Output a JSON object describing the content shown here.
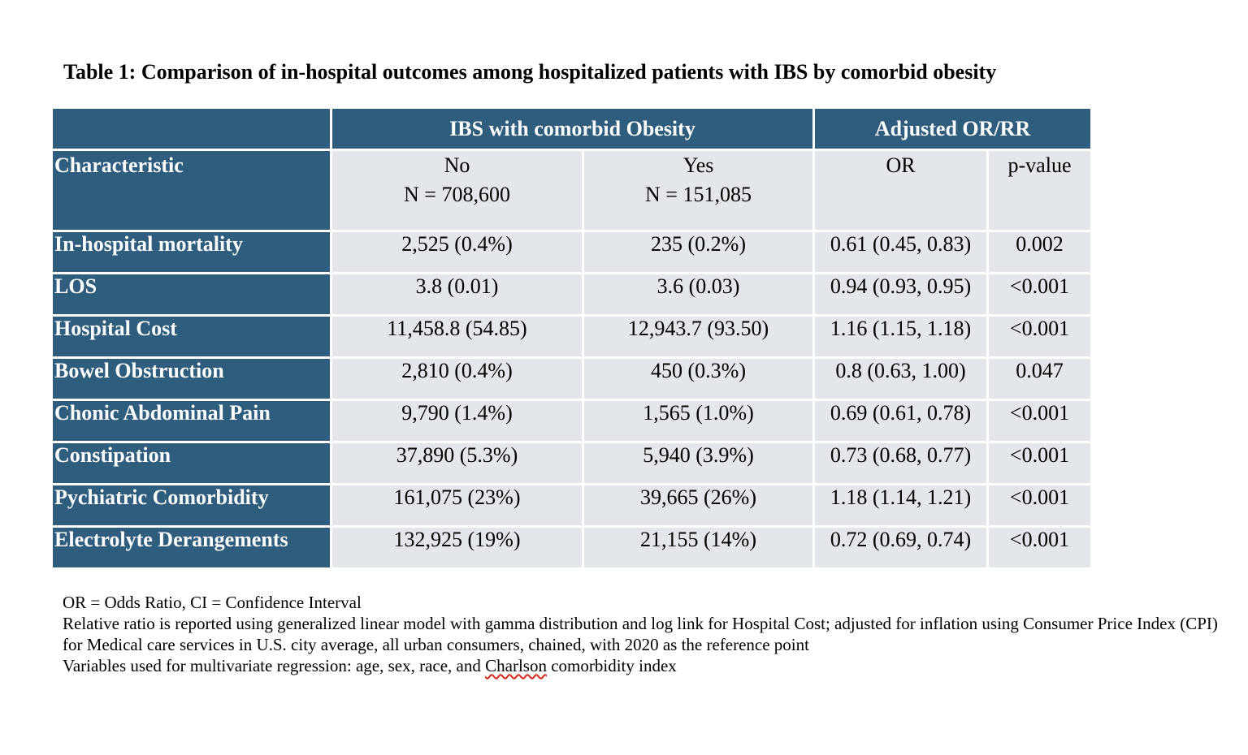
{
  "title": "Table 1: Comparison of in-hospital outcomes among hospitalized patients with IBS by comorbid obesity",
  "table": {
    "group_headers": [
      "IBS with comorbid Obesity",
      "Adjusted OR/RR"
    ],
    "characteristic_label": "Characteristic",
    "columns": [
      {
        "label": "No",
        "n": "N = 708,600"
      },
      {
        "label": "Yes",
        "n": "N = 151,085"
      },
      {
        "label": "OR",
        "n": ""
      },
      {
        "label": "p-value",
        "n": ""
      }
    ],
    "rows": [
      {
        "label": "In-hospital mortality",
        "no": "2,525 (0.4%)",
        "yes": "235 (0.2%)",
        "or": "0.61 (0.45, 0.83)",
        "p": "0.002"
      },
      {
        "label": "LOS",
        "no": "3.8 (0.01)",
        "yes": "3.6 (0.03)",
        "or": "0.94 (0.93, 0.95)",
        "p": "<0.001"
      },
      {
        "label": "Hospital Cost",
        "no": "11,458.8 (54.85)",
        "yes": "12,943.7 (93.50)",
        "or": "1.16 (1.15, 1.18)",
        "p": "<0.001"
      },
      {
        "label": "Bowel Obstruction",
        "no": "2,810 (0.4%)",
        "yes": "450 (0.3%)",
        "or": "0.8 (0.63, 1.00)",
        "p": "0.047"
      },
      {
        "label": "Chonic Abdominal Pain",
        "no": "9,790 (1.4%)",
        "yes": "1,565 (1.0%)",
        "or": "0.69 (0.61, 0.78)",
        "p": "<0.001"
      },
      {
        "label": "Constipation",
        "no": "37,890 (5.3%)",
        "yes": "5,940 (3.9%)",
        "or": "0.73 (0.68, 0.77)",
        "p": "<0.001"
      },
      {
        "label": "Pychiatric Comorbidity",
        "no": "161,075 (23%)",
        "yes": "39,665 (26%)",
        "or": "1.18 (1.14, 1.21)",
        "p": "<0.001"
      },
      {
        "label": "Electrolyte Derangements",
        "no": "132,925 (19%)",
        "yes": "21,155 (14%)",
        "or": "0.72 (0.69, 0.74)",
        "p": "<0.001"
      }
    ]
  },
  "footnotes": {
    "abbreviations": "OR = Odds Ratio, CI = Confidence Interval",
    "relative_ratio": "Relative ratio is reported using generalized linear model with gamma distribution and log link for Hospital Cost; adjusted for inflation using Consumer Price Index (CPI) for Medical care services in U.S. city average, all urban consumers, chained, with 2020 as the reference point",
    "variables_prefix": "Variables used for multivariate regression: age, sex, race, and ",
    "variables_flagged_word": "Charlson",
    "variables_suffix": " comorbidity index"
  },
  "colors": {
    "header_blue": "#2e5d7e",
    "cell_gray": "#e3e6ea",
    "spellcheck_red": "#d62d20"
  }
}
